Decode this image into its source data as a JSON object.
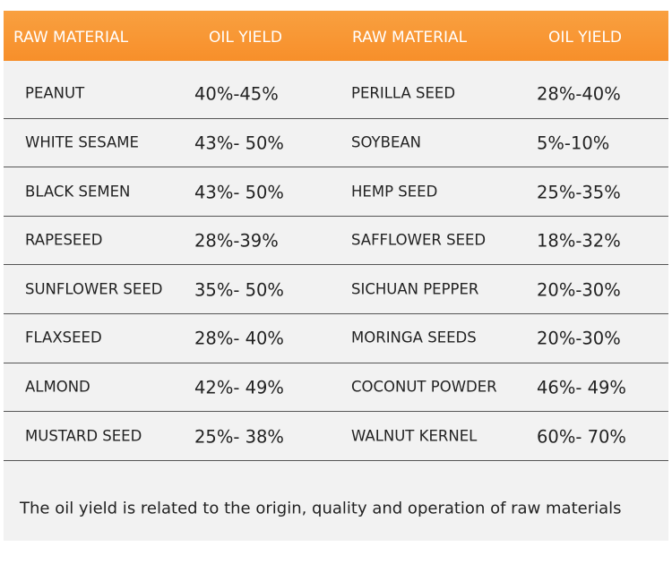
{
  "table": {
    "headers": [
      "RAW MATERIAL",
      "OIL YIELD",
      "RAW MATERIAL",
      "OIL YIELD"
    ],
    "rows": [
      [
        "PEANUT",
        "40%-45%",
        "PERILLA SEED",
        "28%-40%"
      ],
      [
        "WHITE SESAME",
        "43%- 50%",
        "SOYBEAN",
        "5%-10%"
      ],
      [
        "BLACK SEMEN",
        "43%- 50%",
        "HEMP SEED",
        "25%-35%"
      ],
      [
        "RAPESEED",
        "28%-39%",
        "SAFFLOWER SEED",
        "18%-32%"
      ],
      [
        "SUNFLOWER SEED",
        "35%- 50%",
        "SICHUAN PEPPER",
        "20%-30%"
      ],
      [
        "FLAXSEED",
        "28%- 40%",
        "MORINGA SEEDS",
        "20%-30%"
      ],
      [
        "ALMOND",
        "42%- 49%",
        "COCONUT POWDER",
        "46%- 49%"
      ],
      [
        "MUSTARD SEED",
        "25%- 38%",
        "WALNUT KERNEL",
        "60%- 70%"
      ]
    ]
  },
  "note": "The oil yield is related to the origin, quality and operation of raw materials"
}
